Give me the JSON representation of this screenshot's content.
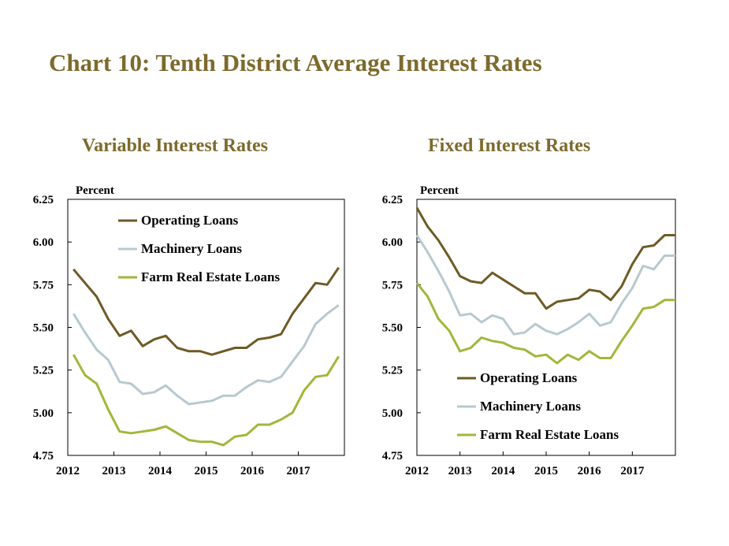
{
  "title": "Chart 10: Tenth District Average Interest Rates",
  "colors": {
    "title": "#7d6a2c",
    "operating": "#6e5a26",
    "machinery": "#b7c9cf",
    "farm_real_estate": "#a3b63a"
  },
  "chart_data": [
    {
      "type": "line",
      "title": "Variable Interest Rates",
      "ylabel": "Percent",
      "ylim": [
        4.75,
        6.25
      ],
      "yticks": [
        "4.75",
        "5.00",
        "5.25",
        "5.50",
        "5.75",
        "6.00",
        "6.25"
      ],
      "xlim": [
        2012,
        2018
      ],
      "xticks": [
        "2012",
        "2013",
        "2014",
        "2015",
        "2016",
        "2017"
      ],
      "legend_position": "top-center",
      "x": [
        2012.125,
        2012.375,
        2012.625,
        2012.875,
        2013.125,
        2013.375,
        2013.625,
        2013.875,
        2014.125,
        2014.375,
        2014.625,
        2014.875,
        2015.125,
        2015.375,
        2015.625,
        2015.875,
        2016.125,
        2016.375,
        2016.625,
        2016.875,
        2017.125,
        2017.375,
        2017.625,
        2017.875
      ],
      "series": [
        {
          "name": "Operating Loans",
          "color_key": "operating",
          "values": [
            5.84,
            5.76,
            5.68,
            5.55,
            5.45,
            5.48,
            5.39,
            5.43,
            5.45,
            5.38,
            5.36,
            5.36,
            5.34,
            5.36,
            5.38,
            5.38,
            5.43,
            5.44,
            5.46,
            5.58,
            5.67,
            5.76,
            5.75,
            5.85
          ]
        },
        {
          "name": "Machinery Loans",
          "color_key": "machinery",
          "values": [
            5.58,
            5.47,
            5.37,
            5.31,
            5.18,
            5.17,
            5.11,
            5.12,
            5.16,
            5.1,
            5.05,
            5.06,
            5.07,
            5.1,
            5.1,
            5.15,
            5.19,
            5.18,
            5.21,
            5.3,
            5.39,
            5.52,
            5.58,
            5.63
          ]
        },
        {
          "name": "Farm Real Estate Loans",
          "color_key": "farm_real_estate",
          "values": [
            5.34,
            5.22,
            5.17,
            5.02,
            4.89,
            4.88,
            4.89,
            4.9,
            4.92,
            4.88,
            4.84,
            4.83,
            4.83,
            4.81,
            4.86,
            4.87,
            4.93,
            4.93,
            4.96,
            5.0,
            5.13,
            5.21,
            5.22,
            5.33
          ]
        }
      ]
    },
    {
      "type": "line",
      "title": "Fixed Interest Rates",
      "ylabel": "Percent",
      "ylim": [
        4.75,
        6.25
      ],
      "yticks": [
        "4.75",
        "5.00",
        "5.25",
        "5.50",
        "5.75",
        "6.00",
        "6.25"
      ],
      "xlim": [
        2012,
        2018
      ],
      "xticks": [
        "2012",
        "2013",
        "2014",
        "2015",
        "2016",
        "2017"
      ],
      "legend_position": "bottom-left",
      "x": [
        2012.0,
        2012.25,
        2012.5,
        2012.75,
        2013.0,
        2013.25,
        2013.5,
        2013.75,
        2014.0,
        2014.25,
        2014.5,
        2014.75,
        2015.0,
        2015.25,
        2015.5,
        2015.75,
        2016.0,
        2016.25,
        2016.5,
        2016.75,
        2017.0,
        2017.25,
        2017.5,
        2017.75,
        2018.0
      ],
      "series": [
        {
          "name": "Operating Loans",
          "color_key": "operating",
          "values": [
            6.2,
            6.09,
            6.01,
            5.91,
            5.8,
            5.77,
            5.76,
            5.82,
            5.78,
            5.74,
            5.7,
            5.7,
            5.61,
            5.65,
            5.66,
            5.67,
            5.72,
            5.71,
            5.66,
            5.74,
            5.87,
            5.97,
            5.98,
            6.04,
            6.04
          ]
        },
        {
          "name": "Machinery Loans",
          "color_key": "machinery",
          "values": [
            6.04,
            5.94,
            5.83,
            5.71,
            5.57,
            5.58,
            5.53,
            5.57,
            5.55,
            5.46,
            5.47,
            5.52,
            5.48,
            5.46,
            5.49,
            5.53,
            5.58,
            5.51,
            5.53,
            5.64,
            5.73,
            5.86,
            5.84,
            5.92,
            5.92
          ]
        },
        {
          "name": "Farm Real Estate Loans",
          "color_key": "farm_real_estate",
          "values": [
            5.76,
            5.68,
            5.55,
            5.48,
            5.36,
            5.38,
            5.44,
            5.42,
            5.41,
            5.38,
            5.37,
            5.33,
            5.34,
            5.29,
            5.34,
            5.31,
            5.36,
            5.32,
            5.32,
            5.42,
            5.51,
            5.61,
            5.62,
            5.66,
            5.66
          ]
        }
      ]
    }
  ]
}
